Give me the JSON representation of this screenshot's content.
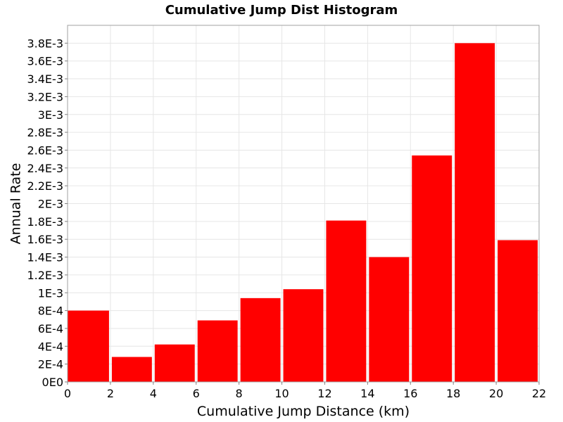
{
  "chart_data": {
    "type": "bar",
    "title": "Cumulative Jump Dist Histogram",
    "xlabel": "Cumulative Jump Distance (km)",
    "ylabel": "Annual Rate",
    "xlim": [
      0,
      22
    ],
    "ylim": [
      0,
      0.004
    ],
    "grid": true,
    "bar_color": "#ff0000",
    "x_ticks": [
      {
        "value": 0,
        "label": "0"
      },
      {
        "value": 2,
        "label": "2"
      },
      {
        "value": 4,
        "label": "4"
      },
      {
        "value": 6,
        "label": "6"
      },
      {
        "value": 8,
        "label": "8"
      },
      {
        "value": 10,
        "label": "10"
      },
      {
        "value": 12,
        "label": "12"
      },
      {
        "value": 14,
        "label": "14"
      },
      {
        "value": 16,
        "label": "16"
      },
      {
        "value": 18,
        "label": "18"
      },
      {
        "value": 20,
        "label": "20"
      },
      {
        "value": 22,
        "label": "22"
      }
    ],
    "y_ticks": [
      {
        "value": 0,
        "label": "0E0"
      },
      {
        "value": 0.0002,
        "label": "2E-4"
      },
      {
        "value": 0.0004,
        "label": "4E-4"
      },
      {
        "value": 0.0006,
        "label": "6E-4"
      },
      {
        "value": 0.0008,
        "label": "8E-4"
      },
      {
        "value": 0.001,
        "label": "1E-3"
      },
      {
        "value": 0.0012,
        "label": "1.2E-3"
      },
      {
        "value": 0.0014,
        "label": "1.4E-3"
      },
      {
        "value": 0.0016,
        "label": "1.6E-3"
      },
      {
        "value": 0.0018,
        "label": "1.8E-3"
      },
      {
        "value": 0.002,
        "label": "2E-3"
      },
      {
        "value": 0.0022,
        "label": "2.2E-3"
      },
      {
        "value": 0.0024,
        "label": "2.4E-3"
      },
      {
        "value": 0.0026,
        "label": "2.6E-3"
      },
      {
        "value": 0.0028,
        "label": "2.8E-3"
      },
      {
        "value": 0.003,
        "label": "3E-3"
      },
      {
        "value": 0.0032,
        "label": "3.2E-3"
      },
      {
        "value": 0.0034,
        "label": "3.4E-3"
      },
      {
        "value": 0.0036,
        "label": "3.6E-3"
      },
      {
        "value": 0.0038,
        "label": "3.8E-3"
      }
    ],
    "bins": [
      {
        "x_start": 0,
        "x_end": 2,
        "value": 0.0008
      },
      {
        "x_start": 2,
        "x_end": 4,
        "value": 0.00028
      },
      {
        "x_start": 4,
        "x_end": 6,
        "value": 0.00042
      },
      {
        "x_start": 6,
        "x_end": 8,
        "value": 0.00069
      },
      {
        "x_start": 8,
        "x_end": 10,
        "value": 0.00094
      },
      {
        "x_start": 10,
        "x_end": 12,
        "value": 0.00104
      },
      {
        "x_start": 12,
        "x_end": 14,
        "value": 0.00181
      },
      {
        "x_start": 14,
        "x_end": 16,
        "value": 0.0014
      },
      {
        "x_start": 16,
        "x_end": 18,
        "value": 0.00254
      },
      {
        "x_start": 18,
        "x_end": 20,
        "value": 0.0038
      },
      {
        "x_start": 20,
        "x_end": 22,
        "value": 0.00159
      }
    ]
  }
}
